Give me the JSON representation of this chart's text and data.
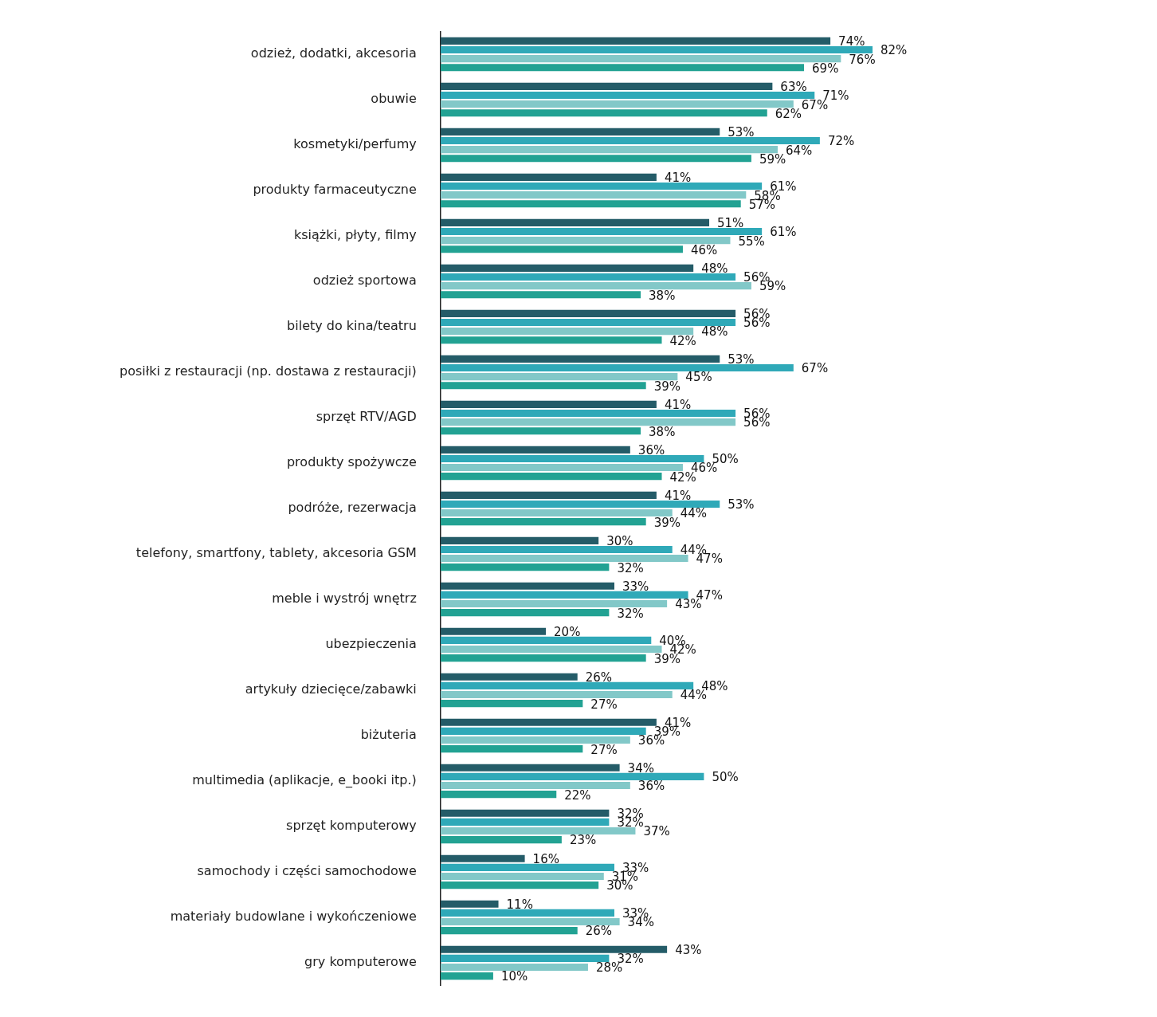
{
  "chart_data": {
    "type": "bar",
    "orientation": "horizontal",
    "grid": false,
    "legend": false,
    "categories": [
      "odzież, dodatki, akcesoria",
      "obuwie",
      "kosmetyki/perfumy",
      "produkty farmaceutyczne",
      "książki, płyty, filmy",
      "odzież sportowa",
      "bilety do kina/teatru",
      "posiłki z restauracji (np. dostawa z restauracji)",
      "sprzęt RTV/AGD",
      "produkty spożywcze",
      "podróże, rezerwacja",
      "telefony, smartfony, tablety, akcesoria GSM",
      "meble i wystrój wnętrz",
      "ubezpieczenia",
      "artykuły dziecięce/zabawki",
      "biżuteria",
      "multimedia (aplikacje, e_booki itp.)",
      "sprzęt komputerowy",
      "samochody i części samochodowe",
      "materiały budowlane i wykończeniowe",
      "gry komputerowe"
    ],
    "series": [
      {
        "color": "#245c68",
        "values": [
          74,
          63,
          53,
          41,
          51,
          48,
          56,
          53,
          41,
          36,
          41,
          30,
          33,
          20,
          26,
          41,
          34,
          32,
          16,
          11,
          43
        ],
        "value_labels": [
          "74%",
          "63%",
          "53%",
          "41%",
          "51%",
          "48%",
          "56%",
          "53%",
          "41%",
          "36%",
          "41%",
          "30%",
          "33%",
          "20%",
          "26%",
          "41%",
          "34%",
          "32%",
          "16%",
          "11%",
          "43%"
        ]
      },
      {
        "color": "#2fa9b8",
        "values": [
          82,
          71,
          72,
          61,
          61,
          56,
          56,
          67,
          56,
          50,
          53,
          44,
          47,
          40,
          48,
          39,
          50,
          32,
          33,
          33,
          32
        ],
        "value_labels": [
          "82%",
          "71%",
          "72%",
          "61%",
          "61%",
          "56%",
          "56%",
          "67%",
          "56%",
          "50%",
          "53%",
          "44%",
          "47%",
          "40%",
          "48%",
          "39%",
          "50%",
          "32%",
          "33%",
          "33%",
          "32%"
        ]
      },
      {
        "color": "#82c8c8",
        "values": [
          76,
          67,
          64,
          58,
          55,
          59,
          48,
          45,
          56,
          46,
          44,
          47,
          43,
          42,
          44,
          36,
          36,
          37,
          31,
          34,
          28
        ],
        "value_labels": [
          "76%",
          "67%",
          "64%",
          "58%",
          "55%",
          "59%",
          "48%",
          "45%",
          "56%",
          "46%",
          "44%",
          "47%",
          "43%",
          "42%",
          "44%",
          "36%",
          "36%",
          "37%",
          "31%",
          "34%",
          "28%"
        ]
      },
      {
        "color": "#22a293",
        "values": [
          69,
          62,
          59,
          57,
          46,
          38,
          42,
          39,
          38,
          42,
          39,
          32,
          32,
          39,
          27,
          27,
          22,
          23,
          30,
          26,
          10
        ],
        "value_labels": [
          "69%",
          "62%",
          "59%",
          "57%",
          "46%",
          "38%",
          "42%",
          "39%",
          "38%",
          "42%",
          "39%",
          "32%",
          "32%",
          "39%",
          "27%",
          "27%",
          "22%",
          "23%",
          "30%",
          "26%",
          "10%"
        ]
      }
    ]
  }
}
